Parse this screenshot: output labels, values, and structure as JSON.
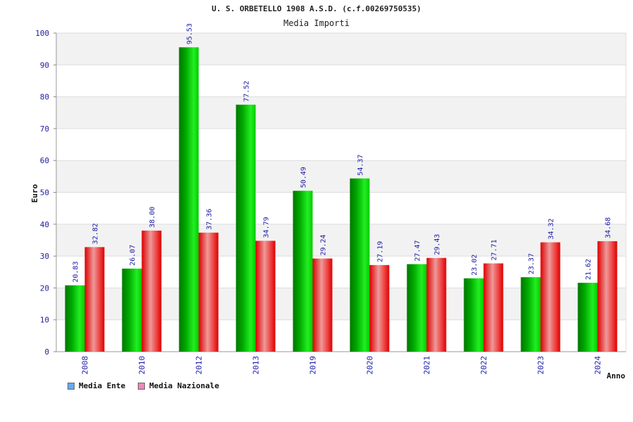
{
  "chart_data": {
    "type": "bar",
    "title": "U. S. ORBETELLO 1908 A.S.D. (c.f.00269750535)",
    "subtitle": "Media Importi",
    "xlabel": "Anno",
    "ylabel": "Euro",
    "ylim": [
      0,
      100
    ],
    "yticks": [
      "0",
      "10",
      "20",
      "30",
      "40",
      "50",
      "60",
      "70",
      "80",
      "90",
      "100"
    ],
    "categories": [
      "2008",
      "2010",
      "2012",
      "2013",
      "2019",
      "2020",
      "2021",
      "2022",
      "2023",
      "2024"
    ],
    "series": [
      {
        "name": "Media Ente",
        "values": [
          20.83,
          26.07,
          95.53,
          77.52,
          50.49,
          54.37,
          27.47,
          23.02,
          23.37,
          21.62
        ],
        "labels": [
          "20.83",
          "26.07",
          "95.53",
          "77.52",
          "50.49",
          "54.37",
          "27.47",
          "23.02",
          "23.37",
          "21.62"
        ]
      },
      {
        "name": "Media Nazionale",
        "values": [
          32.82,
          38.0,
          37.36,
          34.79,
          29.24,
          27.19,
          29.43,
          27.71,
          34.32,
          34.68
        ],
        "labels": [
          "32.82",
          "38.00",
          "37.36",
          "34.79",
          "29.24",
          "27.19",
          "29.43",
          "27.71",
          "34.32",
          "34.68"
        ]
      }
    ],
    "grid": true,
    "legend_position": "bottom-left"
  },
  "colors": {
    "ente": "#00cc00",
    "nazionale": "#ee2222",
    "legend_ente": "#66aaee",
    "legend_nazionale": "#ee88bb",
    "axis_text": "#1a1aa6",
    "band": "#f2f2f2"
  }
}
